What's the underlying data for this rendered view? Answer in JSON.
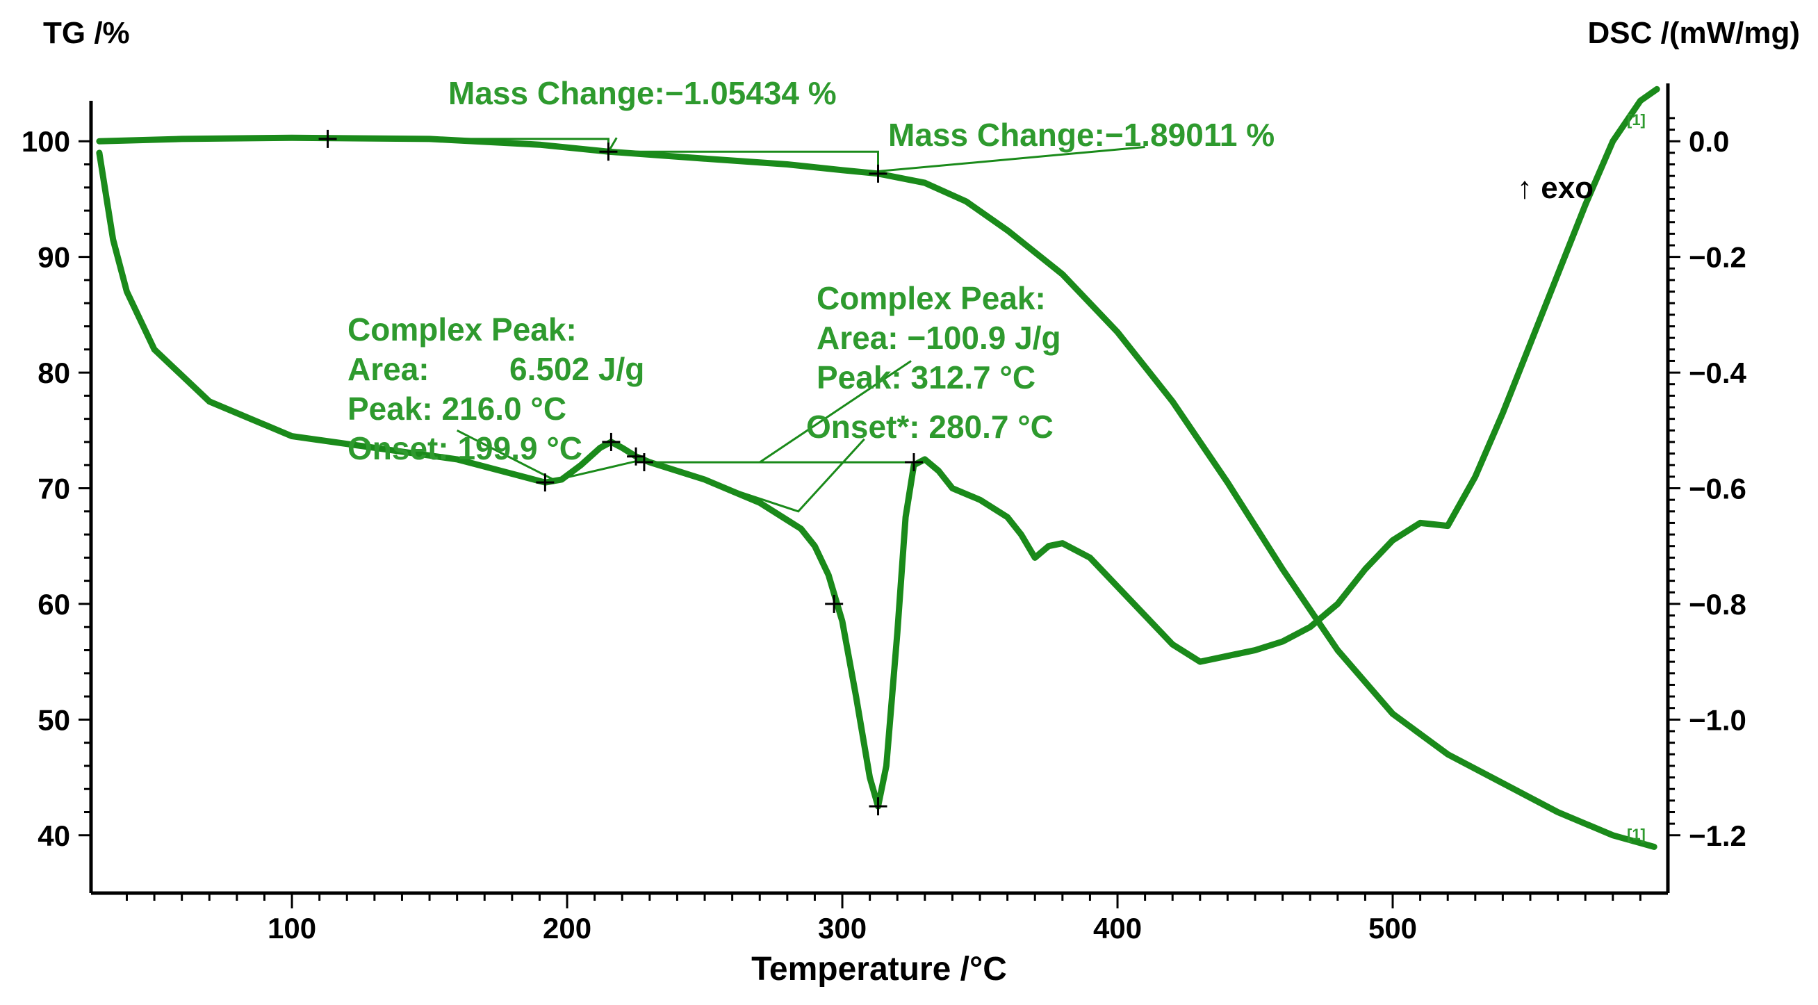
{
  "chart_data": {
    "type": "line",
    "xlabel": "Temperature /°C",
    "ylabel_left": "TG /%",
    "ylabel_right": "DSC /(mW/mg)",
    "exo_label": "↑ exo",
    "xlim": [
      27,
      600
    ],
    "ylim_left": [
      35,
      105
    ],
    "ylim_right": [
      -1.3,
      0.1
    ],
    "x_ticks": [
      100,
      200,
      300,
      400,
      500
    ],
    "y_ticks_left": [
      40,
      50,
      60,
      70,
      80,
      90,
      100
    ],
    "y_ticks_right": [
      0.0,
      -0.2,
      -0.4,
      -0.6,
      -0.8,
      -1.0,
      -1.2
    ],
    "y_ticks_right_labels": [
      "0.0",
      "−0.2",
      "−0.4",
      "−0.6",
      "−0.8",
      "−1.0",
      "−1.2"
    ],
    "colors": {
      "curve": "#1a8a1a",
      "text": "#2e9a2e",
      "axis": "#000000"
    },
    "series": [
      {
        "name": "TG",
        "axis": "left",
        "x": [
          30,
          60,
          100,
          150,
          190,
          215,
          250,
          280,
          300,
          313,
          330,
          345,
          360,
          380,
          400,
          420,
          440,
          460,
          480,
          500,
          520,
          540,
          560,
          580,
          595
        ],
        "values": [
          100.0,
          100.2,
          100.3,
          100.2,
          99.7,
          99.1,
          98.5,
          98.0,
          97.5,
          97.2,
          96.4,
          94.8,
          92.3,
          88.5,
          83.5,
          77.5,
          70.5,
          63.0,
          56.0,
          50.5,
          47.0,
          44.5,
          42.0,
          40.0,
          39.0
        ]
      },
      {
        "name": "DSC",
        "axis": "right",
        "x": [
          30,
          35,
          40,
          50,
          70,
          100,
          130,
          160,
          180,
          192,
          198,
          205,
          212,
          216,
          220,
          225,
          230,
          250,
          270,
          285,
          290,
          295,
          300,
          305,
          310,
          313,
          316,
          320,
          323,
          326,
          330,
          335,
          340,
          350,
          360,
          365,
          370,
          375,
          380,
          390,
          400,
          410,
          420,
          430,
          440,
          450,
          460,
          470,
          480,
          490,
          500,
          510,
          520,
          530,
          540,
          550,
          560,
          570,
          580,
          590,
          596
        ],
        "values": [
          -0.02,
          -0.17,
          -0.26,
          -0.36,
          -0.45,
          -0.51,
          -0.53,
          -0.55,
          -0.575,
          -0.59,
          -0.585,
          -0.56,
          -0.53,
          -0.52,
          -0.53,
          -0.545,
          -0.555,
          -0.585,
          -0.625,
          -0.67,
          -0.7,
          -0.75,
          -0.83,
          -0.96,
          -1.1,
          -1.15,
          -1.08,
          -0.85,
          -0.65,
          -0.56,
          -0.55,
          -0.57,
          -0.6,
          -0.62,
          -0.65,
          -0.68,
          -0.72,
          -0.7,
          -0.695,
          -0.72,
          -0.77,
          -0.82,
          -0.87,
          -0.9,
          -0.89,
          -0.88,
          -0.865,
          -0.84,
          -0.8,
          -0.74,
          -0.69,
          -0.66,
          -0.665,
          -0.58,
          -0.47,
          -0.35,
          -0.23,
          -0.11,
          0.0,
          0.07,
          0.09
        ]
      }
    ],
    "annotations": {
      "mass_change_1": "Mass Change:−1.05434 %",
      "mass_change_2": "Mass Change:−1.89011 %",
      "peak1_title": "Complex Peak:",
      "peak1_area_label": "Area:",
      "peak1_area_value": "6.502 J/g",
      "peak1_peak": "Peak:  216.0 °C",
      "peak1_onset": "Onset: 199.9 °C",
      "peak2_title": "Complex Peak:",
      "peak2_area": "Area: −100.9 J/g",
      "peak2_peak": "Peak:  312.7 °C",
      "peak2_onset": "Onset*: 280.7 °C",
      "end_marker": "[1]"
    }
  }
}
